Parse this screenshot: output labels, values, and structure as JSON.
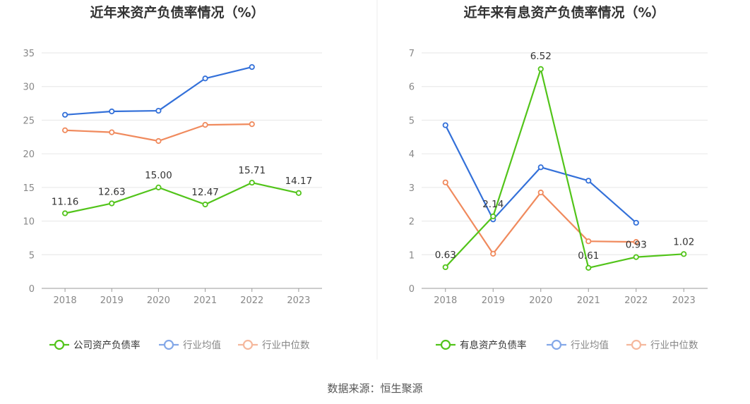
{
  "source_text": "数据来源：恒生聚源",
  "chart_data": [
    {
      "type": "line",
      "title": "近年来资产负债率情况（%）",
      "categories": [
        "2018",
        "2019",
        "2020",
        "2021",
        "2022",
        "2023"
      ],
      "ylim": [
        0,
        35
      ],
      "yticks": [
        0,
        5,
        10,
        15,
        20,
        25,
        30,
        35
      ],
      "grid": true,
      "legend_position": "bottom",
      "series": [
        {
          "name": "公司资产负债率",
          "color": "#52c41a",
          "values": [
            11.16,
            12.63,
            15.0,
            12.47,
            15.71,
            14.17
          ],
          "labels": [
            "11.16",
            "12.63",
            "15.00",
            "12.47",
            "15.71",
            "14.17"
          ]
        },
        {
          "name": "行业均值",
          "color": "#3370d9",
          "values": [
            25.8,
            26.3,
            26.4,
            31.2,
            32.9,
            null
          ],
          "labels": null
        },
        {
          "name": "行业中位数",
          "color": "#f08a5d",
          "values": [
            23.5,
            23.2,
            21.9,
            24.3,
            24.4,
            null
          ],
          "labels": null
        }
      ]
    },
    {
      "type": "line",
      "title": "近年来有息资产负债率情况（%）",
      "categories": [
        "2018",
        "2019",
        "2020",
        "2021",
        "2022",
        "2023"
      ],
      "ylim": [
        0,
        7
      ],
      "yticks": [
        0,
        1,
        2,
        3,
        4,
        5,
        6,
        7
      ],
      "grid": true,
      "legend_position": "bottom",
      "series": [
        {
          "name": "有息资产负债率",
          "color": "#52c41a",
          "values": [
            0.63,
            2.14,
            6.52,
            0.61,
            0.93,
            1.02
          ],
          "labels": [
            "0.63",
            "2.14",
            "6.52",
            "0.61",
            "0.93",
            "1.02"
          ]
        },
        {
          "name": "行业均值",
          "color": "#3370d9",
          "values": [
            4.85,
            2.05,
            3.6,
            3.2,
            1.95,
            null
          ],
          "labels": null
        },
        {
          "name": "行业中位数",
          "color": "#f08a5d",
          "values": [
            3.15,
            1.03,
            2.85,
            1.4,
            1.38,
            null
          ],
          "labels": null
        }
      ]
    }
  ]
}
